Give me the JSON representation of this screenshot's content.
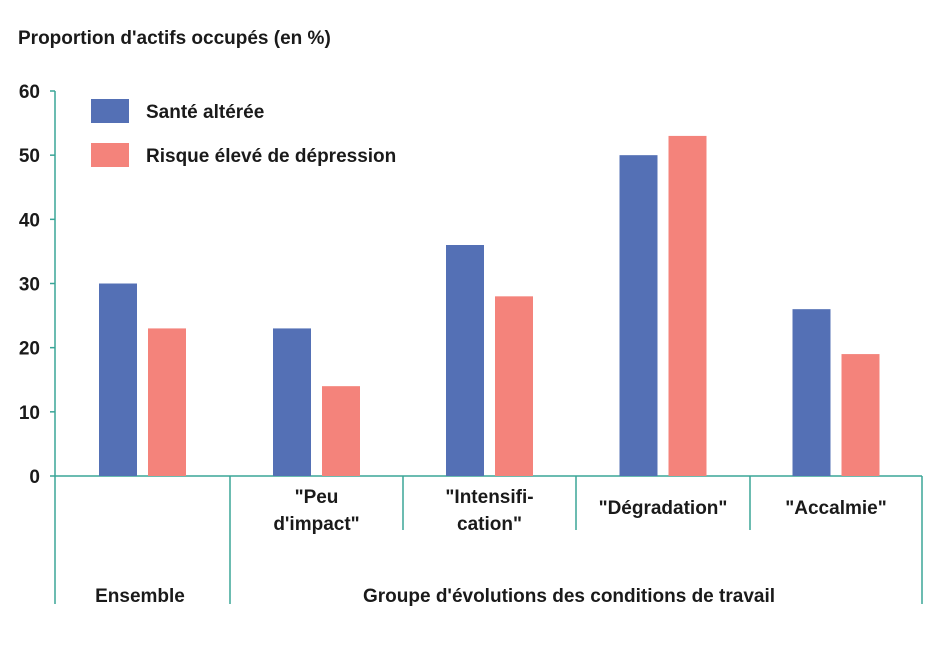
{
  "chart_data": {
    "type": "bar",
    "title": "Proportion d'actifs occupés (en %)",
    "ylim": [
      0,
      60
    ],
    "yticks": [
      0,
      10,
      20,
      30,
      40,
      50,
      60
    ],
    "grid": false,
    "legend_position": "top-left",
    "categories": [
      "Ensemble",
      "\"Peu d'impact\"",
      "\"Intensifi-cation\"",
      "\"Dégradation\"",
      "\"Accalmie\""
    ],
    "category_label_lines": [
      [],
      [
        "\"Peu",
        "d'impact\""
      ],
      [
        "\"Intensifi-",
        "cation\""
      ],
      [
        "\"Dégradation\""
      ],
      [
        "\"Accalmie\""
      ]
    ],
    "group_labels": [
      "Ensemble",
      "Groupe d'évolutions des conditions de travail"
    ],
    "series": [
      {
        "name": "Santé altérée",
        "color": "#5470b5",
        "values": [
          30,
          23,
          36,
          50,
          26
        ]
      },
      {
        "name": "Risque élevé de dépression",
        "color": "#f4837b",
        "values": [
          23,
          14,
          28,
          53,
          19
        ]
      }
    ],
    "axis_color": "#3aa597"
  }
}
